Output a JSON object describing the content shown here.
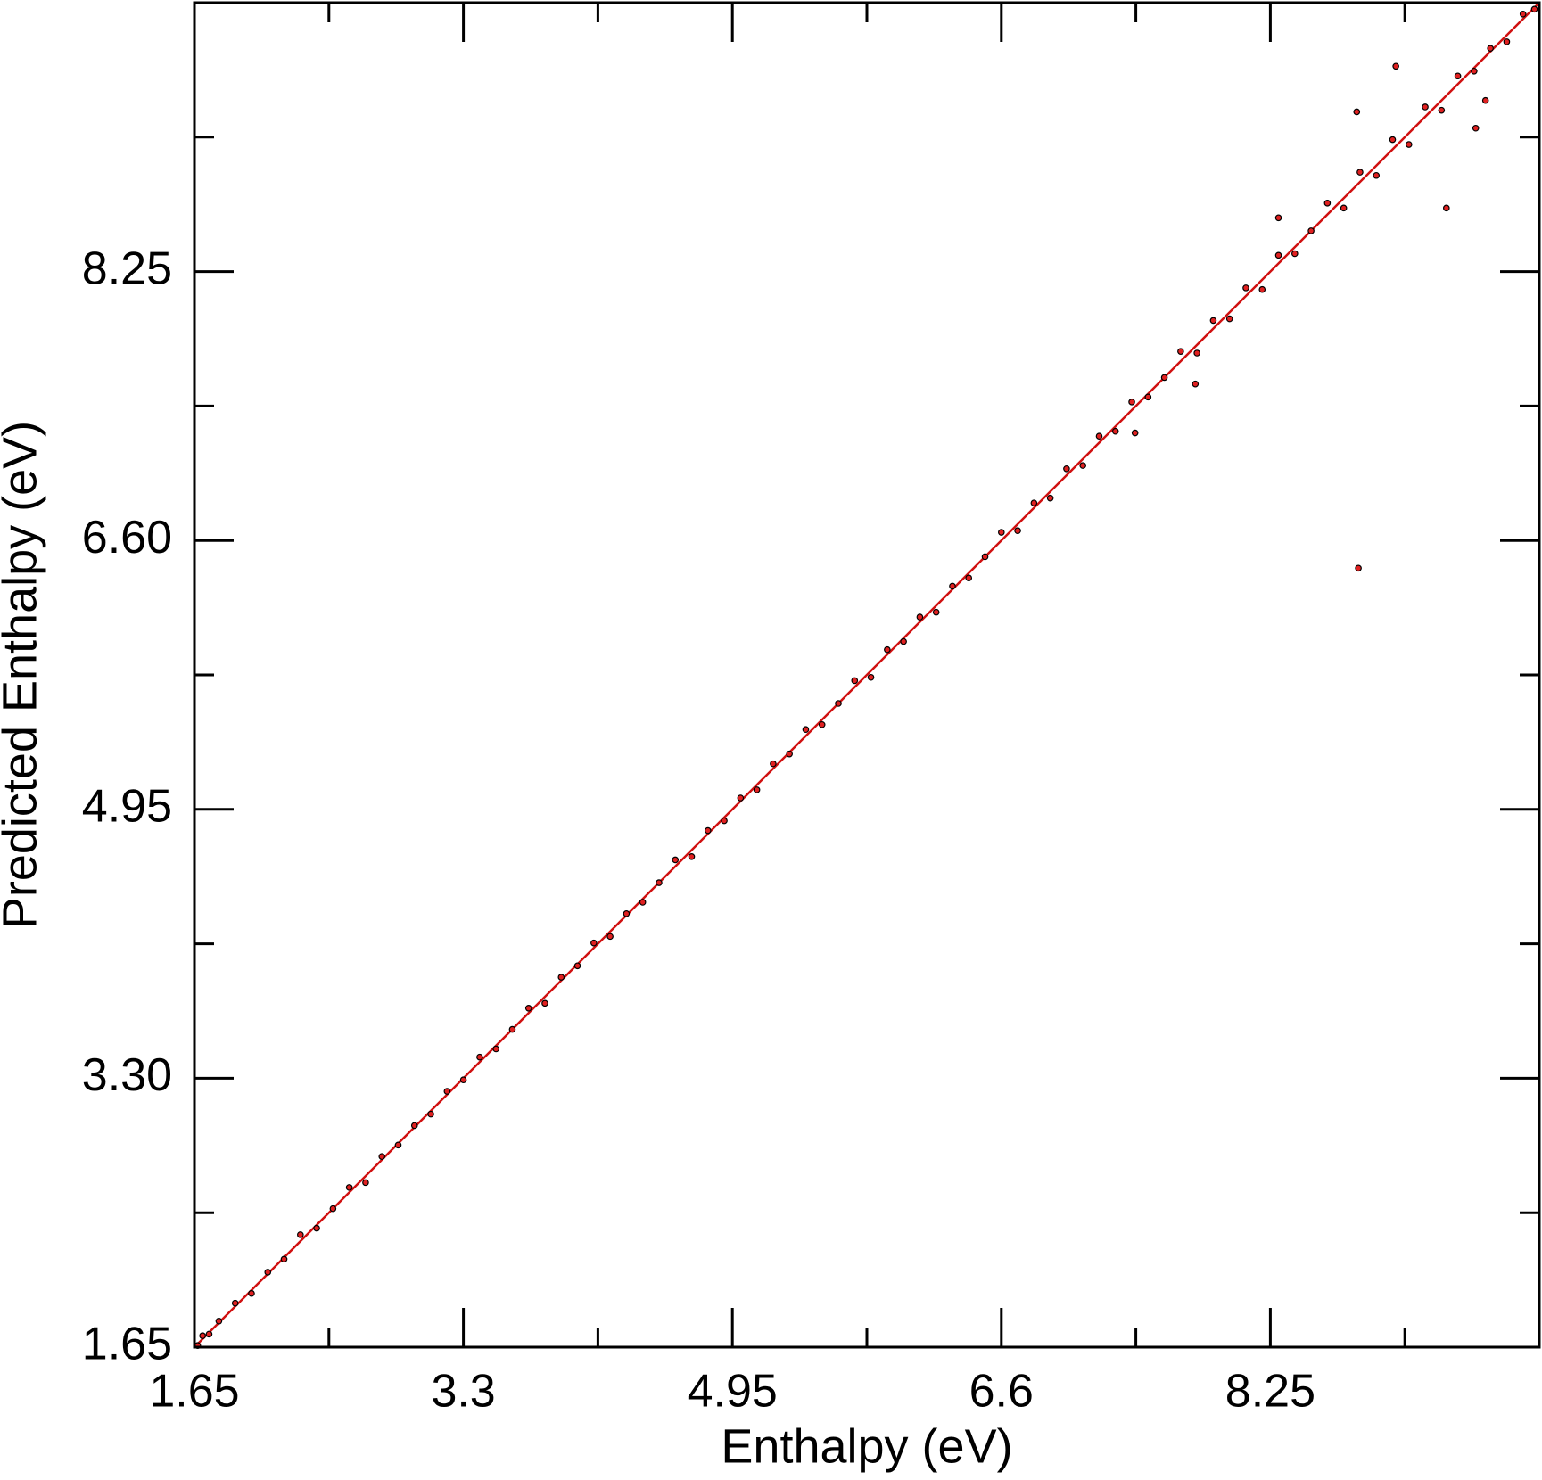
{
  "chart_data": {
    "type": "scatter",
    "x_label": "Enthalpy (eV)",
    "y_label": "Predicted Enthalpy (eV)",
    "xlim": [
      1.65,
      9.9
    ],
    "ylim": [
      1.65,
      9.9
    ],
    "xticks": [
      1.65,
      3.3,
      4.95,
      6.6,
      8.25
    ],
    "yticks": [
      1.65,
      {
        "value": 3.3,
        "label": "3.30"
      },
      4.95,
      {
        "value": 6.6,
        "label": "6.60"
      },
      8.25
    ],
    "x_minor_ticks": [
      2.475,
      4.125,
      5.775,
      7.425,
      9.075
    ],
    "y_minor_ticks": [
      2.475,
      4.125,
      5.775,
      7.425,
      9.075
    ],
    "series": [
      {
        "type": "scatter",
        "color": "#e02020",
        "x": [
          1.67,
          1.7,
          1.74,
          1.8,
          1.9,
          2.0,
          2.1,
          2.2,
          2.3,
          2.4,
          2.5,
          2.6,
          2.7,
          2.8,
          2.9,
          3.0,
          3.1,
          3.2,
          3.3,
          3.4,
          3.5,
          3.6,
          3.7,
          3.8,
          3.9,
          4.0,
          4.1,
          4.2,
          4.3,
          4.4,
          4.5,
          4.6,
          4.7,
          4.8,
          4.9,
          5.0,
          5.1,
          5.2,
          5.3,
          5.4,
          5.5,
          5.6,
          5.7,
          5.8,
          5.9,
          6.0,
          6.1,
          6.2,
          6.3,
          6.4,
          6.5,
          6.6,
          6.7,
          6.8,
          6.9,
          7.0,
          7.1,
          7.2,
          7.3,
          7.4,
          7.5,
          7.6,
          7.7,
          7.8,
          7.9,
          8.0,
          8.1,
          8.2,
          8.3,
          8.4,
          8.5,
          8.6,
          8.7,
          8.8,
          8.9,
          9.0,
          9.1,
          9.2,
          9.3,
          9.4,
          9.5,
          9.6,
          9.7,
          9.8,
          9.87,
          8.79,
          9.02,
          8.78,
          9.33,
          8.3,
          7.79,
          7.42,
          9.57,
          9.51
        ],
        "values": [
          1.66,
          1.72,
          1.73,
          1.81,
          1.92,
          1.98,
          2.11,
          2.19,
          2.34,
          2.38,
          2.5,
          2.63,
          2.66,
          2.82,
          2.89,
          3.01,
          3.08,
          3.22,
          3.29,
          3.43,
          3.48,
          3.6,
          3.73,
          3.76,
          3.92,
          3.99,
          4.13,
          4.17,
          4.31,
          4.38,
          4.5,
          4.64,
          4.66,
          4.82,
          4.88,
          5.02,
          5.07,
          5.23,
          5.29,
          5.44,
          5.47,
          5.6,
          5.74,
          5.76,
          5.93,
          5.98,
          6.13,
          6.16,
          6.32,
          6.37,
          6.5,
          6.65,
          6.66,
          6.83,
          6.86,
          7.04,
          7.06,
          7.24,
          7.27,
          7.45,
          7.48,
          7.6,
          7.76,
          7.75,
          7.95,
          7.96,
          8.15,
          8.14,
          8.35,
          8.36,
          8.5,
          8.67,
          8.64,
          8.86,
          8.84,
          9.06,
          9.03,
          9.26,
          9.24,
          9.45,
          9.48,
          9.62,
          9.66,
          9.83,
          9.86,
          6.43,
          9.51,
          9.23,
          8.64,
          8.58,
          7.56,
          7.26,
          9.3,
          9.13
        ]
      },
      {
        "type": "line",
        "color": "#d01010",
        "x": [
          1.65,
          9.9
        ],
        "values": [
          1.65,
          9.9
        ]
      }
    ]
  }
}
